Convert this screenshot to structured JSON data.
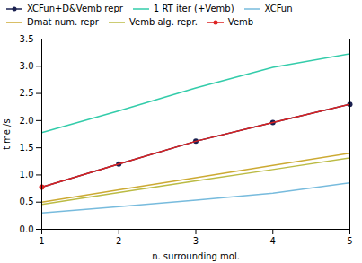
{
  "chart_data": {
    "type": "line",
    "xlabel": "n. surrounding mol.",
    "ylabel": "time /s",
    "x": [
      1,
      2,
      3,
      4,
      5
    ],
    "series": [
      {
        "name": "XCFun+D&Vemb repr",
        "color": "#1a2050",
        "values": [
          0.775,
          1.2,
          1.62,
          1.965,
          2.3
        ],
        "marker": "circle",
        "marker_x": [
          2,
          3,
          4,
          5
        ]
      },
      {
        "name": "1 RT iter (+Vemb)",
        "color": "#33ccaa",
        "values": [
          1.78,
          2.18,
          2.6,
          2.98,
          3.23
        ]
      },
      {
        "name": "XCFun",
        "color": "#77bbdd",
        "values": [
          0.3,
          0.415,
          0.535,
          0.665,
          0.855
        ]
      },
      {
        "name": "Dmat num. repr",
        "color": "#ccaa33",
        "values": [
          0.5,
          0.725,
          0.95,
          1.175,
          1.4
        ]
      },
      {
        "name": "Vemb alg. repr.",
        "color": "#bbbb44",
        "values": [
          0.46,
          0.675,
          0.89,
          1.1,
          1.315
        ]
      },
      {
        "name": "Vemb",
        "color": "#dd2222",
        "values": [
          0.775,
          1.2,
          1.62,
          1.965,
          2.3
        ],
        "marker": "circle",
        "marker_x": [
          1
        ]
      }
    ],
    "xlim": [
      1,
      5
    ],
    "ylim": [
      0,
      3.5
    ],
    "xticks": [
      1,
      2,
      3,
      4,
      5
    ],
    "yticks": [
      {
        "value": 0,
        "label": "0.0"
      },
      {
        "value": 0.5,
        "label": "0.5"
      },
      {
        "value": 1.0,
        "label": "1.0"
      },
      {
        "value": 1.5,
        "label": "1.5"
      },
      {
        "value": 2.0,
        "label": "2.0"
      },
      {
        "value": 2.5,
        "label": "2.5"
      },
      {
        "value": 3.0,
        "label": "3.0"
      },
      {
        "value": 3.5,
        "label": "3.5"
      }
    ],
    "grid": false,
    "legend": "upper left"
  }
}
